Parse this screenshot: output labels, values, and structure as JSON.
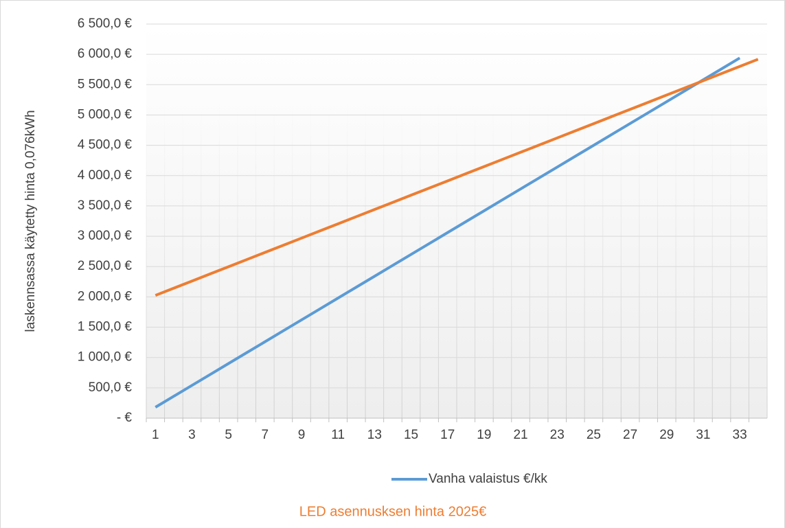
{
  "chart_data": {
    "type": "line",
    "y_label": "laskennsassa käytetty hinta 0,076kWh",
    "categories": [
      1,
      null,
      3,
      null,
      5,
      null,
      7,
      null,
      9,
      null,
      11,
      null,
      13,
      null,
      15,
      null,
      17,
      null,
      19,
      null,
      21,
      null,
      23,
      null,
      25,
      null,
      27,
      null,
      29,
      null,
      31,
      null,
      33,
      null
    ],
    "series": [
      {
        "name": "Vanha valaistus €/kk",
        "color": "#5b9bd5",
        "values": [
          180,
          360,
          540,
          720,
          900,
          1080,
          1260,
          1440,
          1620,
          1800,
          1980,
          2160,
          2340,
          2520,
          2700,
          2880,
          3060,
          3240,
          3420,
          3600,
          3780,
          3960,
          4140,
          4320,
          4500,
          4680,
          4860,
          5040,
          5220,
          5400,
          5580,
          5760,
          5940,
          null
        ]
      },
      {
        "name": "LED asennusksen hinta 2025€",
        "color": "#ed7d31",
        "values": [
          2025,
          2143,
          2261,
          2379,
          2497,
          2615,
          2733,
          2851,
          2969,
          3087,
          3205,
          3323,
          3441,
          3559,
          3677,
          3795,
          3913,
          4031,
          4149,
          4267,
          4385,
          4503,
          4621,
          4739,
          4857,
          4975,
          5093,
          5211,
          5329,
          5447,
          5565,
          5683,
          5801,
          5919
        ]
      }
    ],
    "ylim": [
      0,
      6500
    ],
    "yticks": [
      {
        "value": 0,
        "label": "-  €"
      },
      {
        "value": 500,
        "label": "500,0 €"
      },
      {
        "value": 1000,
        "label": "1 000,0 €"
      },
      {
        "value": 1500,
        "label": "1 500,0 €"
      },
      {
        "value": 2000,
        "label": "2 000,0 €"
      },
      {
        "value": 2500,
        "label": "2 500,0 €"
      },
      {
        "value": 3000,
        "label": "3 000,0 €"
      },
      {
        "value": 3500,
        "label": "3 500,0 €"
      },
      {
        "value": 4000,
        "label": "4 000,0 €"
      },
      {
        "value": 4500,
        "label": "4 500,0 €"
      },
      {
        "value": 5000,
        "label": "5 000,0 €"
      },
      {
        "value": 5500,
        "label": "5 500,0 €"
      },
      {
        "value": 6000,
        "label": "6 000,0 €"
      },
      {
        "value": 6500,
        "label": "6 500,0 €"
      }
    ],
    "grid": true
  }
}
